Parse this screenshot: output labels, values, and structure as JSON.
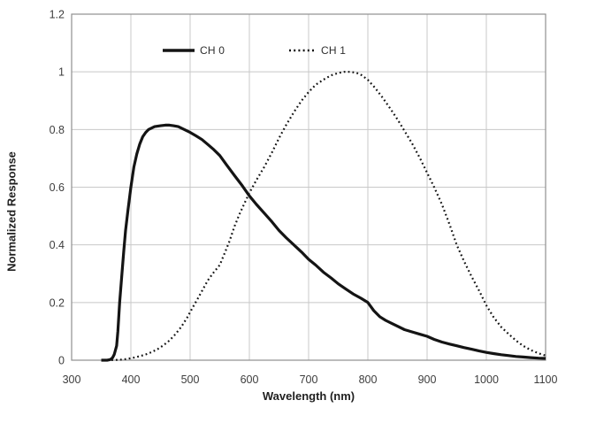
{
  "chart_data": {
    "type": "line",
    "title": "",
    "xlabel": "Wavelength (nm)",
    "ylabel": "Normalized Response",
    "xlim": [
      300,
      1100
    ],
    "ylim": [
      0,
      1.2
    ],
    "x_ticks": [
      300,
      400,
      500,
      600,
      700,
      800,
      900,
      1000,
      1100
    ],
    "y_ticks": [
      0,
      0.2,
      0.4,
      0.6,
      0.8,
      1,
      1.2
    ],
    "y_tick_labels": [
      "0",
      "0.2",
      "0.4",
      "0.6",
      "0.8",
      "1",
      "1.2"
    ],
    "grid": true,
    "legend_position": "top-inside",
    "series": [
      {
        "name": "CH 0",
        "line_style": "solid",
        "color": "#141414",
        "points": [
          [
            350,
            0
          ],
          [
            360,
            0
          ],
          [
            365,
            0.002
          ],
          [
            369,
            0.008
          ],
          [
            372,
            0.02
          ],
          [
            376,
            0.05
          ],
          [
            378,
            0.1
          ],
          [
            381,
            0.2
          ],
          [
            385,
            0.3
          ],
          [
            388,
            0.38
          ],
          [
            391,
            0.45
          ],
          [
            395,
            0.52
          ],
          [
            400,
            0.6
          ],
          [
            405,
            0.67
          ],
          [
            410,
            0.715
          ],
          [
            415,
            0.75
          ],
          [
            420,
            0.775
          ],
          [
            425,
            0.79
          ],
          [
            430,
            0.8
          ],
          [
            440,
            0.81
          ],
          [
            450,
            0.813
          ],
          [
            458,
            0.815
          ],
          [
            465,
            0.815
          ],
          [
            472,
            0.813
          ],
          [
            480,
            0.81
          ],
          [
            490,
            0.8
          ],
          [
            500,
            0.79
          ],
          [
            510,
            0.778
          ],
          [
            520,
            0.765
          ],
          [
            530,
            0.748
          ],
          [
            540,
            0.73
          ],
          [
            550,
            0.71
          ],
          [
            562,
            0.676
          ],
          [
            575,
            0.64
          ],
          [
            588,
            0.605
          ],
          [
            600,
            0.57
          ],
          [
            612,
            0.54
          ],
          [
            625,
            0.51
          ],
          [
            638,
            0.48
          ],
          [
            650,
            0.45
          ],
          [
            662,
            0.425
          ],
          [
            675,
            0.4
          ],
          [
            688,
            0.375
          ],
          [
            700,
            0.35
          ],
          [
            712,
            0.33
          ],
          [
            725,
            0.305
          ],
          [
            738,
            0.285
          ],
          [
            750,
            0.265
          ],
          [
            762,
            0.248
          ],
          [
            775,
            0.23
          ],
          [
            788,
            0.215
          ],
          [
            800,
            0.2
          ],
          [
            810,
            0.172
          ],
          [
            820,
            0.151
          ],
          [
            830,
            0.138
          ],
          [
            840,
            0.128
          ],
          [
            850,
            0.118
          ],
          [
            862,
            0.106
          ],
          [
            875,
            0.098
          ],
          [
            888,
            0.09
          ],
          [
            900,
            0.083
          ],
          [
            912,
            0.072
          ],
          [
            925,
            0.063
          ],
          [
            938,
            0.056
          ],
          [
            950,
            0.05
          ],
          [
            962,
            0.044
          ],
          [
            975,
            0.038
          ],
          [
            988,
            0.032
          ],
          [
            1000,
            0.027
          ],
          [
            1012,
            0.023
          ],
          [
            1025,
            0.019
          ],
          [
            1038,
            0.016
          ],
          [
            1050,
            0.013
          ],
          [
            1062,
            0.011
          ],
          [
            1075,
            0.009
          ],
          [
            1088,
            0.007
          ],
          [
            1100,
            0.006
          ]
        ]
      },
      {
        "name": "CH 1",
        "line_style": "dotted",
        "color": "#141414",
        "points": [
          [
            360,
            0
          ],
          [
            375,
            0.001
          ],
          [
            385,
            0.002
          ],
          [
            395,
            0.005
          ],
          [
            405,
            0.009
          ],
          [
            415,
            0.014
          ],
          [
            425,
            0.02
          ],
          [
            435,
            0.028
          ],
          [
            445,
            0.038
          ],
          [
            455,
            0.052
          ],
          [
            465,
            0.068
          ],
          [
            475,
            0.09
          ],
          [
            485,
            0.115
          ],
          [
            495,
            0.148
          ],
          [
            505,
            0.185
          ],
          [
            512,
            0.21
          ],
          [
            520,
            0.24
          ],
          [
            530,
            0.277
          ],
          [
            540,
            0.305
          ],
          [
            550,
            0.33
          ],
          [
            558,
            0.37
          ],
          [
            566,
            0.41
          ],
          [
            575,
            0.465
          ],
          [
            583,
            0.505
          ],
          [
            592,
            0.545
          ],
          [
            600,
            0.58
          ],
          [
            612,
            0.625
          ],
          [
            625,
            0.67
          ],
          [
            638,
            0.72
          ],
          [
            650,
            0.77
          ],
          [
            662,
            0.815
          ],
          [
            675,
            0.86
          ],
          [
            688,
            0.9
          ],
          [
            700,
            0.93
          ],
          [
            712,
            0.955
          ],
          [
            725,
            0.973
          ],
          [
            738,
            0.988
          ],
          [
            750,
            0.996
          ],
          [
            760,
            1
          ],
          [
            770,
            1
          ],
          [
            780,
            0.997
          ],
          [
            790,
            0.988
          ],
          [
            800,
            0.972
          ],
          [
            812,
            0.945
          ],
          [
            825,
            0.91
          ],
          [
            838,
            0.872
          ],
          [
            850,
            0.835
          ],
          [
            862,
            0.795
          ],
          [
            875,
            0.75
          ],
          [
            888,
            0.7
          ],
          [
            900,
            0.65
          ],
          [
            912,
            0.6
          ],
          [
            925,
            0.54
          ],
          [
            938,
            0.47
          ],
          [
            950,
            0.4
          ],
          [
            962,
            0.345
          ],
          [
            975,
            0.29
          ],
          [
            988,
            0.24
          ],
          [
            1000,
            0.19
          ],
          [
            1012,
            0.15
          ],
          [
            1025,
            0.115
          ],
          [
            1038,
            0.09
          ],
          [
            1050,
            0.068
          ],
          [
            1062,
            0.05
          ],
          [
            1075,
            0.035
          ],
          [
            1088,
            0.024
          ],
          [
            1100,
            0.016
          ]
        ]
      }
    ]
  },
  "colors": {
    "background": "#ffffff",
    "curve": "#141414",
    "grid": "#c8c8c8",
    "plot_border": "#8f8f8f",
    "tick_text": "#3d3d3d",
    "title_text": "#1f1f1f"
  }
}
